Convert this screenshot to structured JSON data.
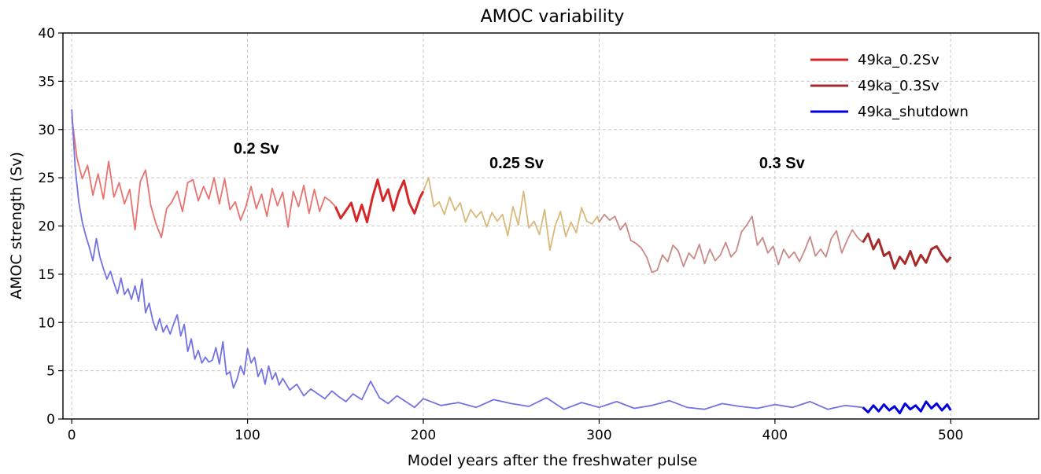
{
  "chart_data": {
    "type": "line",
    "title": "AMOC variability",
    "xlabel": "Model years after the freshwater pulse",
    "ylabel": "AMOC strength (Sv)",
    "xlim": [
      -5,
      550
    ],
    "ylim": [
      0,
      40
    ],
    "xticks": [
      0,
      100,
      200,
      300,
      400,
      500
    ],
    "yticks": [
      0,
      5,
      10,
      15,
      20,
      25,
      30,
      35,
      40
    ],
    "grid": true,
    "legend_position": "top-right",
    "annotations": [
      {
        "text": "0.2 Sv",
        "x": 105,
        "y": 27.5
      },
      {
        "text": "0.25 Sv",
        "x": 253,
        "y": 26.0
      },
      {
        "text": "0.3 Sv",
        "x": 404,
        "y": 26.0
      }
    ],
    "legend": [
      {
        "label": "49ka_0.2Sv",
        "color": "#d62728"
      },
      {
        "label": "49ka_0.3Sv",
        "color": "#a52a2a"
      },
      {
        "label": "49ka_shutdown",
        "color": "#0000dd"
      }
    ],
    "series": [
      {
        "name": "49ka_0.2Sv",
        "color": "#d62728",
        "x": [
          150,
          153,
          156,
          159,
          162,
          165,
          168,
          171,
          174,
          177,
          180,
          183,
          186,
          189,
          192,
          195,
          198,
          200
        ],
        "y": [
          22.0,
          20.8,
          21.6,
          22.4,
          20.5,
          22.2,
          20.4,
          22.9,
          24.8,
          22.6,
          23.8,
          21.6,
          23.5,
          24.7,
          22.4,
          21.3,
          22.9,
          23.6
        ]
      },
      {
        "name": "49ka_0.3Sv",
        "color": "#a52a2a",
        "x": [
          450,
          453,
          456,
          459,
          462,
          465,
          468,
          471,
          474,
          477,
          480,
          483,
          486,
          489,
          492,
          495,
          498,
          500
        ],
        "y": [
          18.3,
          19.2,
          17.6,
          18.6,
          16.9,
          17.3,
          15.6,
          16.8,
          16.1,
          17.4,
          15.9,
          17.0,
          16.2,
          17.6,
          17.9,
          17.0,
          16.3,
          16.8
        ]
      },
      {
        "name": "49ka_shutdown",
        "color": "#0000dd",
        "x": [
          450,
          453,
          456,
          459,
          462,
          465,
          468,
          471,
          474,
          477,
          480,
          483,
          486,
          489,
          492,
          495,
          498,
          500
        ],
        "y": [
          1.2,
          0.7,
          1.4,
          0.8,
          1.5,
          0.9,
          1.3,
          0.6,
          1.6,
          1.0,
          1.4,
          0.8,
          1.8,
          1.1,
          1.6,
          0.9,
          1.5,
          0.9
        ]
      },
      {
        "name": "",
        "color": "#e8726f",
        "x": [
          0,
          3,
          6,
          9,
          12,
          15,
          18,
          21,
          24,
          27,
          30,
          33,
          36,
          39,
          42,
          45,
          48,
          51,
          54,
          57,
          60,
          63,
          66,
          69,
          72,
          75,
          78,
          81,
          84,
          87,
          90,
          93,
          96,
          99,
          102,
          105,
          108,
          111,
          114,
          117,
          120,
          123,
          126,
          129,
          132,
          135,
          138,
          141,
          144,
          147,
          150
        ],
        "y": [
          31.3,
          27.0,
          24.9,
          26.3,
          23.2,
          25.4,
          22.8,
          26.7,
          23.0,
          24.5,
          22.3,
          23.8,
          19.6,
          24.6,
          25.8,
          22.1,
          20.2,
          18.8,
          21.8,
          22.5,
          23.6,
          21.5,
          24.5,
          24.8,
          22.6,
          24.1,
          22.8,
          25.0,
          22.3,
          24.9,
          21.7,
          22.5,
          20.6,
          22.0,
          24.1,
          21.8,
          23.3,
          21.0,
          23.9,
          22.1,
          23.5,
          19.9,
          23.6,
          22.0,
          24.2,
          21.3,
          23.8,
          21.5,
          23.0,
          22.6,
          22.0
        ]
      },
      {
        "name": "",
        "color": "#d9b97a",
        "x": [
          200,
          203,
          206,
          209,
          212,
          215,
          218,
          221,
          224,
          227,
          230,
          233,
          236,
          239,
          242,
          245,
          248,
          251,
          254,
          257,
          260,
          263,
          266,
          269,
          272,
          275,
          278,
          281,
          284,
          287,
          290,
          293,
          296,
          299,
          300
        ],
        "y": [
          23.6,
          25.0,
          22.0,
          22.5,
          21.2,
          23.0,
          21.6,
          22.4,
          20.4,
          21.7,
          20.9,
          21.5,
          19.9,
          21.4,
          20.5,
          21.2,
          19.0,
          22.0,
          20.1,
          23.6,
          19.8,
          20.5,
          19.1,
          21.7,
          17.5,
          20.0,
          21.5,
          18.9,
          20.4,
          19.3,
          21.9,
          20.5,
          20.2,
          21.0,
          20.4
        ]
      },
      {
        "name": "",
        "color": "#c98a85",
        "x": [
          300,
          303,
          306,
          309,
          312,
          315,
          318,
          321,
          324,
          327,
          330,
          333,
          336,
          339,
          342,
          345,
          348,
          351,
          354,
          357,
          360,
          363,
          366,
          369,
          372,
          375,
          378,
          381,
          384,
          387,
          390,
          393,
          396,
          399,
          402,
          405,
          408,
          411,
          414,
          417,
          420,
          423,
          426,
          429,
          432,
          435,
          438,
          441,
          444,
          447,
          450
        ],
        "y": [
          20.4,
          21.2,
          20.6,
          21.0,
          19.6,
          20.3,
          18.5,
          18.2,
          17.7,
          16.8,
          15.2,
          15.4,
          17.0,
          16.3,
          18.0,
          17.4,
          15.8,
          17.2,
          16.6,
          18.1,
          16.1,
          17.6,
          16.4,
          17.0,
          18.3,
          16.8,
          17.4,
          19.4,
          20.1,
          21.0,
          18.0,
          18.8,
          17.2,
          17.9,
          16.0,
          17.6,
          16.7,
          17.3,
          16.3,
          17.5,
          18.9,
          16.9,
          17.6,
          16.8,
          18.7,
          19.5,
          17.2,
          18.5,
          19.6,
          18.8,
          18.3
        ]
      },
      {
        "name": "",
        "color": "#7272e2",
        "x": [
          0,
          2,
          4,
          6,
          8,
          10,
          12,
          14,
          16,
          18,
          20,
          22,
          24,
          26,
          28,
          30,
          32,
          34,
          36,
          38,
          40,
          42,
          44,
          46,
          48,
          50,
          52,
          54,
          56,
          58,
          60,
          62,
          64,
          66,
          68,
          70,
          72,
          74,
          76,
          78,
          80,
          82,
          84,
          86,
          88,
          90,
          92,
          94,
          96,
          98,
          100,
          102,
          104,
          106,
          108,
          110,
          112,
          114,
          116,
          118,
          120,
          124,
          128,
          132,
          136,
          140,
          144,
          148,
          152,
          156,
          160,
          165,
          170,
          175,
          180,
          185,
          190,
          195,
          200,
          210,
          220,
          230,
          240,
          250,
          260,
          270,
          280,
          290,
          300,
          310,
          320,
          330,
          340,
          350,
          360,
          370,
          380,
          390,
          400,
          410,
          420,
          430,
          440,
          450
        ],
        "y": [
          32.1,
          26.0,
          22.5,
          20.4,
          19.0,
          17.8,
          16.4,
          18.7,
          16.8,
          15.6,
          14.5,
          15.3,
          14.1,
          13.0,
          14.6,
          12.9,
          13.5,
          12.4,
          13.8,
          12.2,
          14.5,
          11.0,
          12.0,
          10.3,
          9.2,
          10.4,
          9.0,
          9.7,
          8.8,
          9.9,
          10.8,
          8.6,
          9.8,
          7.0,
          8.3,
          6.2,
          7.1,
          5.8,
          6.4,
          5.9,
          6.1,
          7.4,
          5.7,
          8.0,
          4.6,
          4.9,
          3.2,
          4.1,
          5.5,
          4.6,
          7.3,
          5.8,
          6.4,
          4.4,
          5.2,
          3.6,
          5.5,
          4.1,
          4.8,
          3.5,
          4.2,
          3.0,
          3.6,
          2.4,
          3.1,
          2.6,
          2.1,
          2.9,
          2.3,
          1.8,
          2.6,
          2.0,
          3.9,
          2.2,
          1.6,
          2.4,
          1.8,
          1.2,
          2.1,
          1.4,
          1.7,
          1.2,
          2.0,
          1.6,
          1.3,
          2.2,
          1.0,
          1.7,
          1.2,
          1.8,
          1.1,
          1.4,
          1.9,
          1.2,
          1.0,
          1.6,
          1.3,
          1.1,
          1.5,
          1.2,
          1.8,
          1.0,
          1.4,
          1.2
        ]
      }
    ]
  }
}
